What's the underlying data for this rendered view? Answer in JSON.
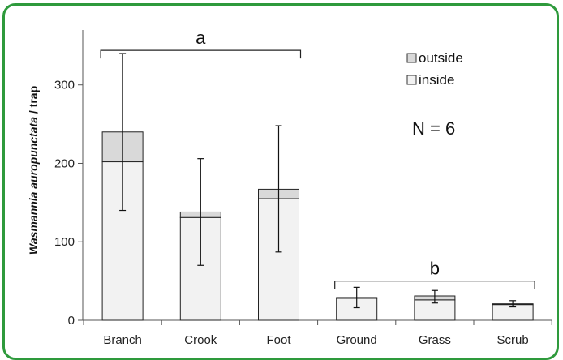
{
  "chart_data": {
    "type": "bar",
    "stacked": true,
    "ylabel_italic": "Wasmannia auropunctata",
    "ylabel_rest": " / trap",
    "ylim": [
      0,
      370
    ],
    "yticks": [
      0,
      100,
      200,
      300
    ],
    "categories": [
      "Branch",
      "Crook",
      "Foot",
      "Ground",
      "Grass",
      "Scrub"
    ],
    "series": [
      {
        "name": "inside",
        "values": [
          202,
          131,
          155,
          28,
          26,
          20
        ],
        "color": "#f2f2f2"
      },
      {
        "name": "outside",
        "values": [
          38,
          7,
          12,
          1,
          5,
          1
        ],
        "color": "#d9d9d9"
      }
    ],
    "error_bars": [
      {
        "low": 140,
        "high": 340
      },
      {
        "low": 70,
        "high": 206
      },
      {
        "low": 87,
        "high": 248
      },
      {
        "low": 16,
        "high": 42
      },
      {
        "low": 22,
        "high": 38
      },
      {
        "low": 17,
        "high": 25
      }
    ],
    "legend": {
      "position": "top-right",
      "entries": [
        "outside",
        "inside"
      ]
    },
    "annotations": {
      "group_a": {
        "label": "a",
        "from": "Branch",
        "to": "Foot"
      },
      "group_b": {
        "label": "b",
        "from": "Ground",
        "to": "Scrub"
      },
      "n_text": "N = 6"
    }
  }
}
